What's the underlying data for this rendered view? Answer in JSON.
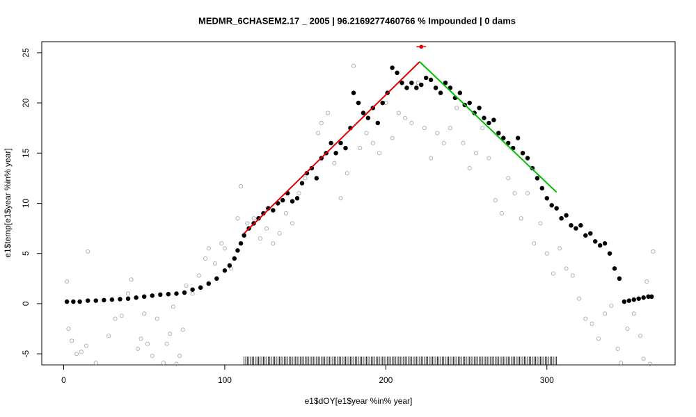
{
  "chart_data": {
    "type": "scatter",
    "title": "MEDMR_6CHASEM2.17 _ 2005   |   96.2169277460766  % Impounded |  0  dams",
    "xlabel": "e1$dOY[e1$year %in% year]",
    "ylabel": "e1$temp[e1$year %in% year]",
    "xlim": [
      -13.6,
      379.6
    ],
    "ylim": [
      -6.1,
      26.1
    ],
    "xticks": [
      0,
      100,
      200,
      300
    ],
    "yticks": [
      -5,
      0,
      5,
      10,
      15,
      20,
      25
    ],
    "series": [
      {
        "color": "#000000",
        "marker": "filled",
        "x": [
          2,
          6,
          10,
          15,
          20,
          25,
          30,
          35,
          40,
          45,
          50,
          55,
          60,
          65,
          70,
          75,
          80,
          85,
          90,
          95,
          100,
          103,
          106,
          108,
          110,
          112,
          115,
          118,
          121,
          124,
          127,
          130,
          133,
          136,
          139,
          142,
          145,
          148,
          151,
          154,
          157,
          160,
          163,
          166,
          169,
          172,
          175,
          178,
          180,
          183,
          186,
          189,
          192,
          195,
          198,
          201,
          204,
          207,
          210,
          213,
          216,
          219,
          222,
          225,
          228,
          231,
          234,
          237,
          240,
          243,
          246,
          249,
          252,
          255,
          258,
          261,
          264,
          267,
          270,
          273,
          276,
          279,
          282,
          285,
          288,
          291,
          294,
          297,
          300,
          303,
          306,
          309,
          312,
          315,
          318,
          321,
          324,
          327,
          330,
          333,
          336,
          339,
          342,
          345,
          348,
          351,
          354,
          357,
          360,
          363,
          365
        ],
        "values": [
          0.2,
          0.2,
          0.2,
          0.3,
          0.3,
          0.35,
          0.4,
          0.45,
          0.5,
          0.6,
          0.7,
          0.8,
          0.9,
          0.95,
          1.0,
          1.1,
          1.4,
          1.6,
          2.0,
          2.5,
          3.3,
          3.8,
          4.5,
          5.3,
          6.0,
          6.8,
          7.5,
          8.0,
          8.5,
          9.0,
          9.5,
          9.3,
          10.0,
          10.3,
          11.0,
          10.2,
          10.5,
          12.0,
          13.0,
          13.5,
          12.5,
          14.5,
          15.0,
          16.0,
          15.0,
          16.0,
          15.5,
          17.5,
          21.0,
          20.0,
          19.0,
          18.5,
          19.5,
          18.0,
          20.0,
          21.0,
          23.5,
          23.0,
          22.0,
          21.5,
          22.0,
          21.5,
          21.8,
          22.5,
          22.3,
          21.5,
          21.0,
          22.0,
          21.5,
          20.5,
          21.0,
          19.8,
          20.0,
          19.0,
          19.5,
          18.5,
          18.0,
          18.3,
          17.0,
          16.5,
          16.0,
          15.5,
          16.5,
          15.0,
          14.5,
          13.5,
          12.5,
          11.5,
          10.5,
          9.8,
          9.5,
          8.5,
          8.8,
          7.8,
          7.5,
          7.8,
          6.8,
          7.0,
          6.2,
          5.8,
          6.0,
          5.0,
          3.5,
          2.5,
          0.2,
          0.3,
          0.4,
          0.5,
          0.6,
          0.7,
          0.7
        ]
      },
      {
        "color": "#aaaaaa",
        "marker": "open",
        "x": [
          2,
          3,
          5,
          8,
          11,
          14,
          15,
          20,
          28,
          32,
          36,
          40,
          42,
          46,
          48,
          50,
          52,
          55,
          58,
          62,
          64,
          66,
          68,
          70,
          72,
          74,
          76,
          80,
          84,
          88,
          90,
          94,
          98,
          100,
          104,
          108,
          110,
          114,
          118,
          122,
          126,
          130,
          134,
          138,
          142,
          146,
          150,
          154,
          158,
          160,
          164,
          168,
          172,
          176,
          180,
          184,
          188,
          192,
          196,
          200,
          204,
          208,
          212,
          216,
          220,
          224,
          228,
          232,
          236,
          240,
          244,
          248,
          252,
          256,
          260,
          264,
          268,
          272,
          276,
          280,
          284,
          288,
          292,
          296,
          300,
          304,
          308,
          312,
          316,
          320,
          324,
          328,
          332,
          336,
          340,
          344,
          346,
          350,
          354,
          358,
          360,
          362,
          364,
          366
        ],
        "values": [
          2.2,
          -2.5,
          -3.7,
          -5,
          -4.8,
          -4.2,
          5.2,
          -5.9,
          -3.2,
          -1.5,
          -1.2,
          1.0,
          2.4,
          -4.5,
          -3.5,
          -1.0,
          -4.0,
          -5.2,
          -1.5,
          -5.9,
          -4.0,
          -3.0,
          -0.3,
          -6.0,
          -5.2,
          -2.6,
          1.8,
          1.0,
          2.8,
          4.5,
          5.5,
          4.0,
          6.0,
          5.5,
          3.5,
          8.5,
          11.7,
          8.0,
          8.5,
          6.5,
          7.5,
          6.0,
          7.0,
          9.0,
          8.0,
          11.0,
          12.5,
          13.5,
          17.0,
          18.0,
          19.0,
          14.0,
          10.5,
          13.0,
          23.7,
          15.5,
          17.0,
          16.0,
          15.0,
          20.0,
          16.5,
          19.0,
          18.5,
          18.0,
          22.0,
          17.5,
          14.5,
          17.0,
          16.0,
          17.5,
          19.5,
          16.0,
          13.5,
          15.0,
          17.5,
          14.5,
          10.3,
          9.0,
          12.5,
          11.0,
          8.5,
          11.0,
          6.0,
          8.0,
          5.0,
          3.0,
          5.5,
          3.5,
          2.8,
          0.5,
          -1.5,
          -2.0,
          -3.5,
          -1.0,
          -0.2,
          -4.5,
          -5.9,
          -2.5,
          -1.0,
          -3.2,
          -5.5,
          2.2,
          -6.0,
          5.2
        ]
      }
    ],
    "lines": [
      {
        "color": "#e00000",
        "x": [
          112,
          221
        ],
        "values": [
          7.0,
          24.1
        ]
      },
      {
        "color": "#00c000",
        "x": [
          221,
          306
        ],
        "values": [
          24.1,
          11.1
        ]
      }
    ],
    "point": {
      "color": "#e00000",
      "x": 222,
      "y": 25.6,
      "xerr": 3
    },
    "rug": [
      112,
      113,
      114,
      115,
      116,
      117,
      118,
      119,
      120,
      121,
      122,
      123,
      124,
      125,
      126,
      127,
      128,
      129,
      130,
      131,
      132,
      133,
      134,
      135,
      136,
      137,
      138,
      139,
      140,
      141,
      142,
      143,
      144,
      145,
      146,
      147,
      148,
      149,
      150,
      151,
      152,
      153,
      154,
      155,
      156,
      157,
      158,
      159,
      160,
      161,
      162,
      163,
      164,
      165,
      166,
      167,
      168,
      169,
      170,
      171,
      172,
      173,
      174,
      175,
      176,
      177,
      178,
      179,
      180,
      181,
      182,
      183,
      184,
      185,
      186,
      187,
      188,
      189,
      190,
      191,
      192,
      193,
      194,
      195,
      196,
      197,
      198,
      199,
      200,
      201,
      202,
      203,
      204,
      205,
      206,
      207,
      208,
      209,
      210,
      211,
      212,
      213,
      214,
      215,
      216,
      217,
      218,
      219,
      220,
      221,
      222,
      223,
      224,
      225,
      226,
      227,
      228,
      229,
      230,
      231,
      232,
      233,
      234,
      235,
      236,
      237,
      238,
      239,
      240,
      241,
      242,
      243,
      244,
      245,
      246,
      247,
      248,
      249,
      250,
      251,
      252,
      253,
      254,
      255,
      256,
      257,
      258,
      259,
      260,
      261,
      262,
      263,
      264,
      265,
      266,
      267,
      268,
      269,
      270,
      271,
      272,
      273,
      274,
      275,
      276,
      277,
      278,
      279,
      280,
      281,
      282,
      283,
      284,
      285,
      286,
      287,
      288,
      289,
      290,
      291,
      292,
      293,
      294,
      295,
      296,
      297,
      298,
      299,
      300,
      301,
      302,
      303,
      304,
      305,
      306
    ]
  }
}
